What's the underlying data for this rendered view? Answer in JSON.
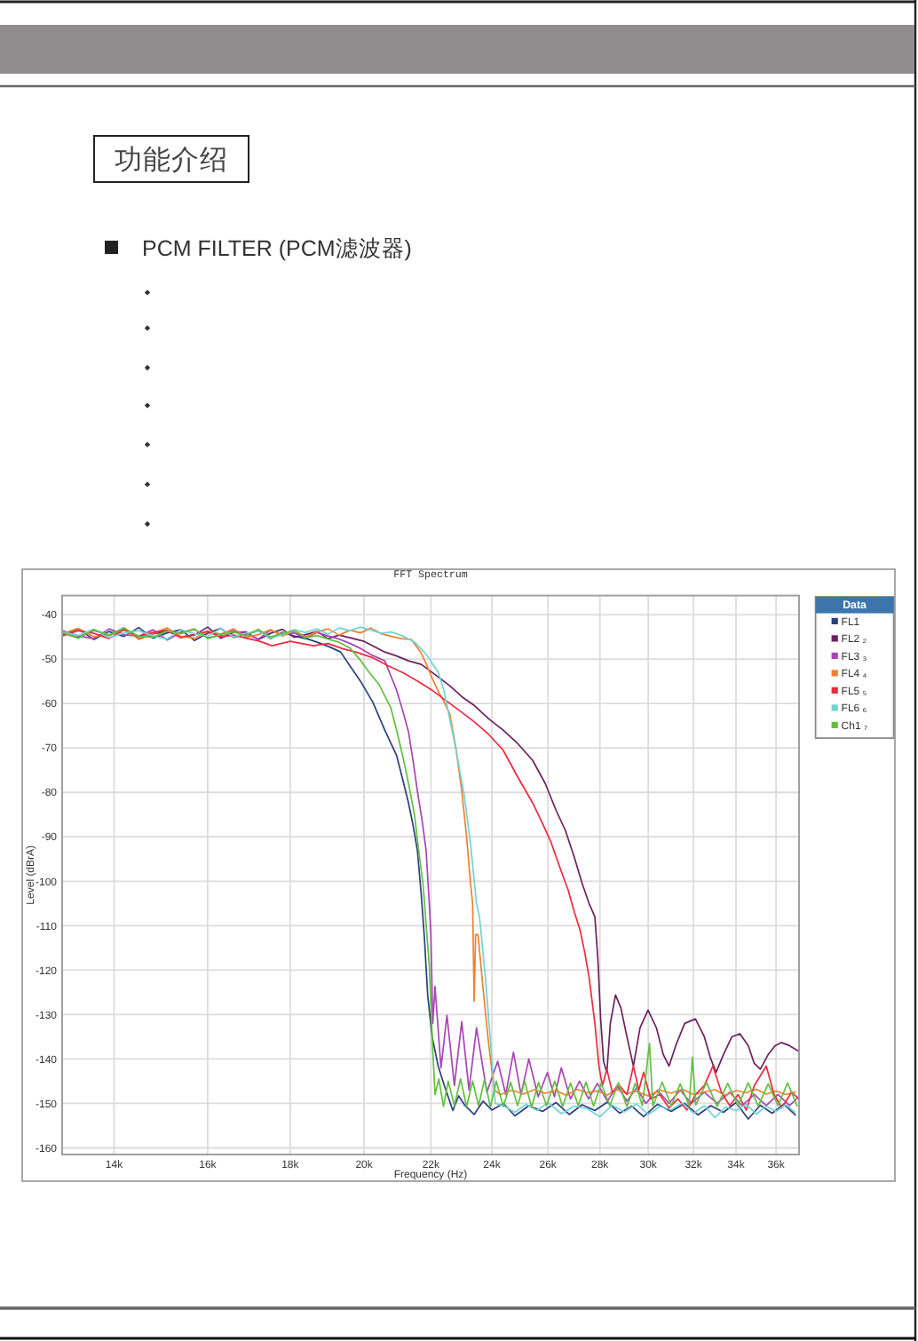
{
  "chart_data": {
    "type": "line",
    "title": "FFT Spectrum",
    "xlabel": "Frequency (Hz)",
    "ylabel": "Level (dBrA)",
    "legend_title": "Data",
    "annotations": [
      "功能介绍",
      "PCM FILTER (PCM滤波器)"
    ],
    "log": "x",
    "xlim": [
      13000,
      37200
    ],
    "ylim": [
      -161.5,
      -35.7
    ],
    "xticks": [
      {
        "value": 14000,
        "label": "14k"
      },
      {
        "value": 16000,
        "label": "16k"
      },
      {
        "value": 18000,
        "label": "18k"
      },
      {
        "value": 20000,
        "label": "20k"
      },
      {
        "value": 22000,
        "label": "22k"
      },
      {
        "value": 24000,
        "label": "24k"
      },
      {
        "value": 26000,
        "label": "26k"
      },
      {
        "value": 28000,
        "label": "28k"
      },
      {
        "value": 30000,
        "label": "30k"
      },
      {
        "value": 32000,
        "label": "32k"
      },
      {
        "value": 34000,
        "label": "34k"
      },
      {
        "value": 36000,
        "label": "36k"
      }
    ],
    "yticks": [
      -40,
      -50,
      -60,
      -70,
      -80,
      -90,
      -100,
      -110,
      -120,
      -130,
      -140,
      -150,
      -160
    ],
    "grid": true,
    "legend": "top right",
    "series": [
      {
        "name": "FL1",
        "color": "#2e3f7f",
        "x": [
          13000,
          13300,
          13600,
          13900,
          14200,
          14500,
          14800,
          15100,
          15400,
          15700,
          16000,
          16300,
          16600,
          16900,
          17200,
          17500,
          17800,
          18100,
          18500,
          18770,
          19050,
          19340,
          19600,
          19900,
          20250,
          20600,
          20950,
          21130,
          21310,
          21450,
          21580,
          21700,
          21800,
          21900,
          22040,
          22230,
          22410,
          22700,
          22890,
          23100,
          23400,
          23700,
          24000,
          24400,
          24800,
          25300,
          25800,
          26300,
          26800,
          27300,
          27800,
          28300,
          28800,
          29300,
          29800,
          30400,
          31000,
          31600,
          32200,
          32800,
          33400,
          34000,
          34600,
          35200,
          35800,
          36400,
          37000
        ],
        "values": [
          -44.5,
          -43.2,
          -45.6,
          -43.8,
          -44.9,
          -42.9,
          -45.3,
          -44.1,
          -43.4,
          -45.8,
          -44.2,
          -43.1,
          -45.1,
          -44.4,
          -43.6,
          -45.4,
          -44.0,
          -44.8,
          -45.6,
          -46.4,
          -47.3,
          -48.4,
          -51.5,
          -55,
          -59.7,
          -66,
          -71.7,
          -77,
          -82.4,
          -87.5,
          -93,
          -103,
          -113,
          -125.6,
          -135,
          -141.6,
          -145.6,
          -151.6,
          -148.3,
          -150.5,
          -152.5,
          -149.5,
          -151.5,
          -150,
          -152.8,
          -150.5,
          -151.8,
          -149.8,
          -152.5,
          -150.3,
          -151.6,
          -149.7,
          -152.2,
          -150.6,
          -153,
          -150.2,
          -151.8,
          -150,
          -152.6,
          -150.5,
          -152,
          -149.8,
          -153.5,
          -150.4,
          -152.2,
          -150.2,
          -152.6
        ]
      },
      {
        "name": "FL2 ₂",
        "color": "#6e2060",
        "x": [
          13000,
          13300,
          13600,
          13900,
          14200,
          14500,
          14800,
          15100,
          15400,
          15700,
          16000,
          16300,
          16600,
          16900,
          17200,
          17500,
          17800,
          18100,
          18400,
          18700,
          19000,
          19300,
          19600,
          20000,
          20300,
          20600,
          20950,
          21310,
          21700,
          22040,
          22600,
          23000,
          23380,
          23900,
          24390,
          24900,
          25440,
          25900,
          26300,
          26650,
          26990,
          27300,
          27570,
          27800,
          27920,
          28030,
          28150,
          28280,
          28420,
          28630,
          28850,
          29100,
          29370,
          29650,
          29990,
          30350,
          30650,
          30900,
          31200,
          31600,
          32090,
          32500,
          32800,
          33050,
          33400,
          33800,
          34190,
          34600,
          34900,
          35200,
          35600,
          35950,
          36270,
          36700,
          37200
        ],
        "values": [
          -44.1,
          -45.2,
          -43.5,
          -44.7,
          -43.0,
          -45.5,
          -44.3,
          -43.7,
          -45.0,
          -44.6,
          -42.8,
          -45.3,
          -44.0,
          -43.9,
          -45.6,
          -44.2,
          -43.3,
          -45.1,
          -44.5,
          -43.8,
          -45.4,
          -44.6,
          -45.2,
          -46.0,
          -47.2,
          -48.4,
          -49.3,
          -50.4,
          -51.2,
          -53,
          -56,
          -58.5,
          -60.3,
          -63.5,
          -66,
          -69,
          -72.8,
          -78,
          -84,
          -88.5,
          -94.5,
          -100.5,
          -105,
          -108,
          -117.6,
          -131,
          -140.7,
          -143,
          -132,
          -125.6,
          -128.5,
          -135,
          -141.6,
          -133,
          -129,
          -133,
          -139,
          -141.6,
          -137,
          -132,
          -131,
          -135,
          -140,
          -143,
          -139,
          -135,
          -134.3,
          -137,
          -141,
          -142.3,
          -139,
          -137,
          -136.3,
          -137,
          -138.3
        ]
      },
      {
        "name": "FL3 ₃",
        "color": "#a845b5",
        "x": [
          13000,
          13300,
          13600,
          13900,
          14200,
          14500,
          14800,
          15100,
          15400,
          15700,
          16000,
          16300,
          16600,
          16900,
          17200,
          17500,
          17800,
          18100,
          18400,
          18700,
          19000,
          19300,
          19580,
          19900,
          20250,
          20600,
          20950,
          21130,
          21310,
          21450,
          21580,
          21720,
          21850,
          21950,
          22000,
          22060,
          22130,
          22320,
          22510,
          22750,
          22990,
          23230,
          23480,
          23830,
          24200,
          24480,
          24750,
          25020,
          25300,
          25640,
          25980,
          26240,
          26500,
          26850,
          27200,
          27550,
          27900,
          28300,
          28700,
          29100,
          29500,
          29900,
          30400,
          30900,
          31400,
          31900,
          32500,
          33100,
          33700,
          34300,
          34900,
          35500,
          36100,
          36700,
          37200
        ],
        "values": [
          -43.6,
          -44.8,
          -45.4,
          -43.2,
          -44.5,
          -44.9,
          -43.4,
          -45.7,
          -44.0,
          -43.3,
          -45.2,
          -44.7,
          -43.6,
          -44.3,
          -45.5,
          -43.5,
          -44.6,
          -44.1,
          -45.3,
          -44.0,
          -44.8,
          -45.5,
          -46.4,
          -47.6,
          -49.2,
          -50.4,
          -57,
          -61.5,
          -66.4,
          -73,
          -79.7,
          -86,
          -93,
          -105,
          -112,
          -132,
          -123.7,
          -142,
          -130.2,
          -146,
          -131.6,
          -147,
          -133,
          -147.5,
          -140.5,
          -148,
          -138.5,
          -148,
          -140,
          -148.5,
          -143,
          -148.5,
          -142,
          -149,
          -145,
          -149,
          -145.5,
          -149.5,
          -146,
          -149.5,
          -146.5,
          -150,
          -147,
          -150,
          -147,
          -150,
          -147.5,
          -150,
          -147.5,
          -150.5,
          -148,
          -150.5,
          -148,
          -150.5,
          -148.5
        ]
      },
      {
        "name": "FL4 ₄",
        "color": "#f0802f",
        "x": [
          13000,
          13300,
          13600,
          13900,
          14200,
          14500,
          14800,
          15100,
          15400,
          15700,
          16000,
          16300,
          16600,
          16900,
          17200,
          17500,
          17800,
          18100,
          18400,
          18700,
          19000,
          19300,
          19600,
          19900,
          20200,
          20500,
          20800,
          21100,
          21400,
          21670,
          21850,
          22040,
          22250,
          22410,
          22600,
          22800,
          22990,
          23150,
          23280,
          23350,
          23400,
          23450,
          23530,
          23700,
          23880,
          24080,
          24300,
          24700,
          25100,
          25500,
          25900,
          26300,
          26700,
          27100,
          27500,
          27900,
          28300,
          28700,
          29100,
          29500,
          30000,
          30500,
          31000,
          31500,
          32000,
          32500,
          33000,
          33500,
          34000,
          34500,
          35000,
          35500,
          36000,
          36500,
          37000
        ],
        "values": [
          -44.3,
          -43.1,
          -45.0,
          -44.6,
          -43.5,
          -45.4,
          -44.2,
          -43.0,
          -44.9,
          -45.3,
          -43.7,
          -44.4,
          -43.2,
          -45.1,
          -44.5,
          -43.4,
          -44.8,
          -43.6,
          -45.0,
          -43.9,
          -43.2,
          -44.6,
          -43.5,
          -44.1,
          -43.0,
          -44.3,
          -44.9,
          -45.4,
          -45.6,
          -48.3,
          -51,
          -54.3,
          -57.5,
          -59.5,
          -62.3,
          -70,
          -79.6,
          -90,
          -100.5,
          -105,
          -127,
          -112,
          -112,
          -124,
          -136,
          -147,
          -148,
          -147,
          -147.9,
          -146.9,
          -147.7,
          -147.1,
          -148.2,
          -146.8,
          -147.6,
          -147.2,
          -148.1,
          -146.9,
          -147.8,
          -147.3,
          -148.3,
          -147,
          -147.7,
          -146.8,
          -148,
          -147.4,
          -146.9,
          -148.2,
          -147.1,
          -147.6,
          -146.8,
          -147.9,
          -147.2,
          -148,
          -147.4
        ]
      },
      {
        "name": "FL5 ₅",
        "color": "#ee2a40",
        "x": [
          13000,
          13300,
          13600,
          13900,
          14200,
          14500,
          14800,
          15100,
          15400,
          15700,
          16000,
          16300,
          16600,
          16900,
          17200,
          17540,
          18000,
          18600,
          19000,
          19410,
          19800,
          20250,
          20700,
          21130,
          21600,
          22040,
          22410,
          22900,
          23380,
          23900,
          24390,
          24900,
          25440,
          25800,
          26100,
          26450,
          26760,
          27000,
          27220,
          27400,
          27570,
          27800,
          27960,
          28100,
          28280,
          28500,
          28800,
          29100,
          29370,
          29600,
          29800,
          30100,
          30500,
          30900,
          31300,
          31700,
          32100,
          32500,
          32900,
          33300,
          33700,
          34100,
          34500,
          34900,
          35500,
          35900,
          36300,
          36800,
          37200
        ],
        "values": [
          -44.8,
          -43.6,
          -44.2,
          -45.4,
          -43.3,
          -44.9,
          -44.0,
          -43.5,
          -45.2,
          -44.4,
          -43.8,
          -45.0,
          -44.6,
          -45.3,
          -45.9,
          -47,
          -46,
          -47,
          -46.5,
          -47.7,
          -48.5,
          -49.7,
          -51.5,
          -53,
          -55,
          -57,
          -59,
          -61.5,
          -64,
          -67,
          -70.5,
          -76.5,
          -82.4,
          -87,
          -91,
          -97,
          -102,
          -107,
          -111,
          -116,
          -121.6,
          -132,
          -141.6,
          -146,
          -142.3,
          -147.5,
          -146,
          -148,
          -141.6,
          -147,
          -143,
          -149,
          -148,
          -151,
          -149,
          -151.5,
          -148,
          -146,
          -141.6,
          -147.5,
          -150.5,
          -148,
          -151.5,
          -146,
          -141.6,
          -148,
          -151,
          -147.5,
          -149
        ]
      },
      {
        "name": "FL6 ₆",
        "color": "#70d4d4",
        "x": [
          13000,
          13300,
          13600,
          13900,
          14200,
          14500,
          14800,
          15100,
          15400,
          15700,
          16000,
          16300,
          16600,
          16900,
          17200,
          17500,
          17800,
          18100,
          18400,
          18700,
          19000,
          19300,
          19600,
          19900,
          20200,
          20500,
          20800,
          21130,
          21500,
          21850,
          22230,
          22410,
          22800,
          23080,
          23280,
          23480,
          23580,
          23780,
          24000,
          24120,
          24400,
          24800,
          25200,
          25600,
          26000,
          26500,
          27000,
          27500,
          28000,
          28500,
          29000,
          29500,
          30000,
          30500,
          31000,
          31500,
          32000,
          32500,
          33000,
          33500,
          34000,
          34500,
          35000,
          35500,
          36000,
          36500,
          37000
        ],
        "values": [
          -43.9,
          -44.7,
          -43.3,
          -45.2,
          -44.1,
          -43.6,
          -44.8,
          -45.5,
          -43.4,
          -44.3,
          -44.9,
          -43.1,
          -45.0,
          -44.2,
          -43.7,
          -45.3,
          -44.5,
          -43.4,
          -44.0,
          -43.2,
          -44.4,
          -43.0,
          -43.6,
          -42.8,
          -43.5,
          -44.2,
          -43.9,
          -44.8,
          -46.2,
          -48.9,
          -52.9,
          -57,
          -70.3,
          -81,
          -91.6,
          -105,
          -108,
          -121.6,
          -140,
          -150,
          -150.5,
          -152,
          -150.2,
          -151.6,
          -149.8,
          -152.3,
          -150.6,
          -151.2,
          -153,
          -150.4,
          -151.9,
          -150.1,
          -152.5,
          -150.7,
          -151.4,
          -149.9,
          -152.2,
          -150.5,
          -153.2,
          -150.8,
          -151.6,
          -150.2,
          -152.4,
          -150.6,
          -151.8,
          -150.3,
          -152
        ]
      },
      {
        "name": "Ch1 ₇",
        "color": "#62c040",
        "x": [
          13000,
          13300,
          13600,
          13900,
          14200,
          14500,
          14800,
          15100,
          15400,
          15700,
          16000,
          16300,
          16600,
          16900,
          17200,
          17500,
          17800,
          18100,
          18400,
          18700,
          19000,
          19300,
          19600,
          19910,
          20150,
          20430,
          20780,
          20950,
          21130,
          21310,
          21490,
          21620,
          21760,
          21850,
          21950,
          22040,
          22130,
          22250,
          22400,
          22550,
          22750,
          22950,
          23150,
          23350,
          23550,
          23750,
          23950,
          24150,
          24400,
          24650,
          24900,
          25150,
          25400,
          25650,
          25950,
          26250,
          26550,
          26850,
          27150,
          27450,
          27750,
          28050,
          28400,
          28750,
          29100,
          29450,
          29750,
          30050,
          30200,
          30600,
          31000,
          31400,
          31800,
          31950,
          32100,
          32600,
          33100,
          33600,
          34100,
          34600,
          35100,
          35600,
          36100,
          36600,
          37100
        ],
        "values": [
          -44.0,
          -45.3,
          -43.4,
          -44.6,
          -43.0,
          -44.9,
          -45.1,
          -43.7,
          -44.3,
          -43.2,
          -45.4,
          -44.5,
          -43.9,
          -44.8,
          -43.3,
          -45.0,
          -44.2,
          -43.6,
          -45.2,
          -44.7,
          -45.5,
          -46.2,
          -47.5,
          -50.4,
          -53,
          -55.7,
          -61,
          -66,
          -71.7,
          -78,
          -85,
          -93,
          -101,
          -109.6,
          -119,
          -135,
          -148,
          -144.5,
          -150.7,
          -145,
          -150.5,
          -144.5,
          -150.7,
          -145,
          -150.5,
          -144.6,
          -150.8,
          -145,
          -150.7,
          -145.2,
          -150.5,
          -145,
          -150.8,
          -145.3,
          -150.5,
          -145,
          -150.7,
          -145.4,
          -150.5,
          -145.2,
          -150.6,
          -145.5,
          -150.5,
          -145.3,
          -150.7,
          -145.5,
          -150.5,
          -136.5,
          -150.6,
          -145.2,
          -150.6,
          -145.6,
          -150.5,
          -139.6,
          -150.4,
          -145.3,
          -150.7,
          -145.5,
          -150.5,
          -145.4,
          -150.6,
          -145.6,
          -150.5,
          -145.4,
          -150.6
        ]
      }
    ]
  }
}
